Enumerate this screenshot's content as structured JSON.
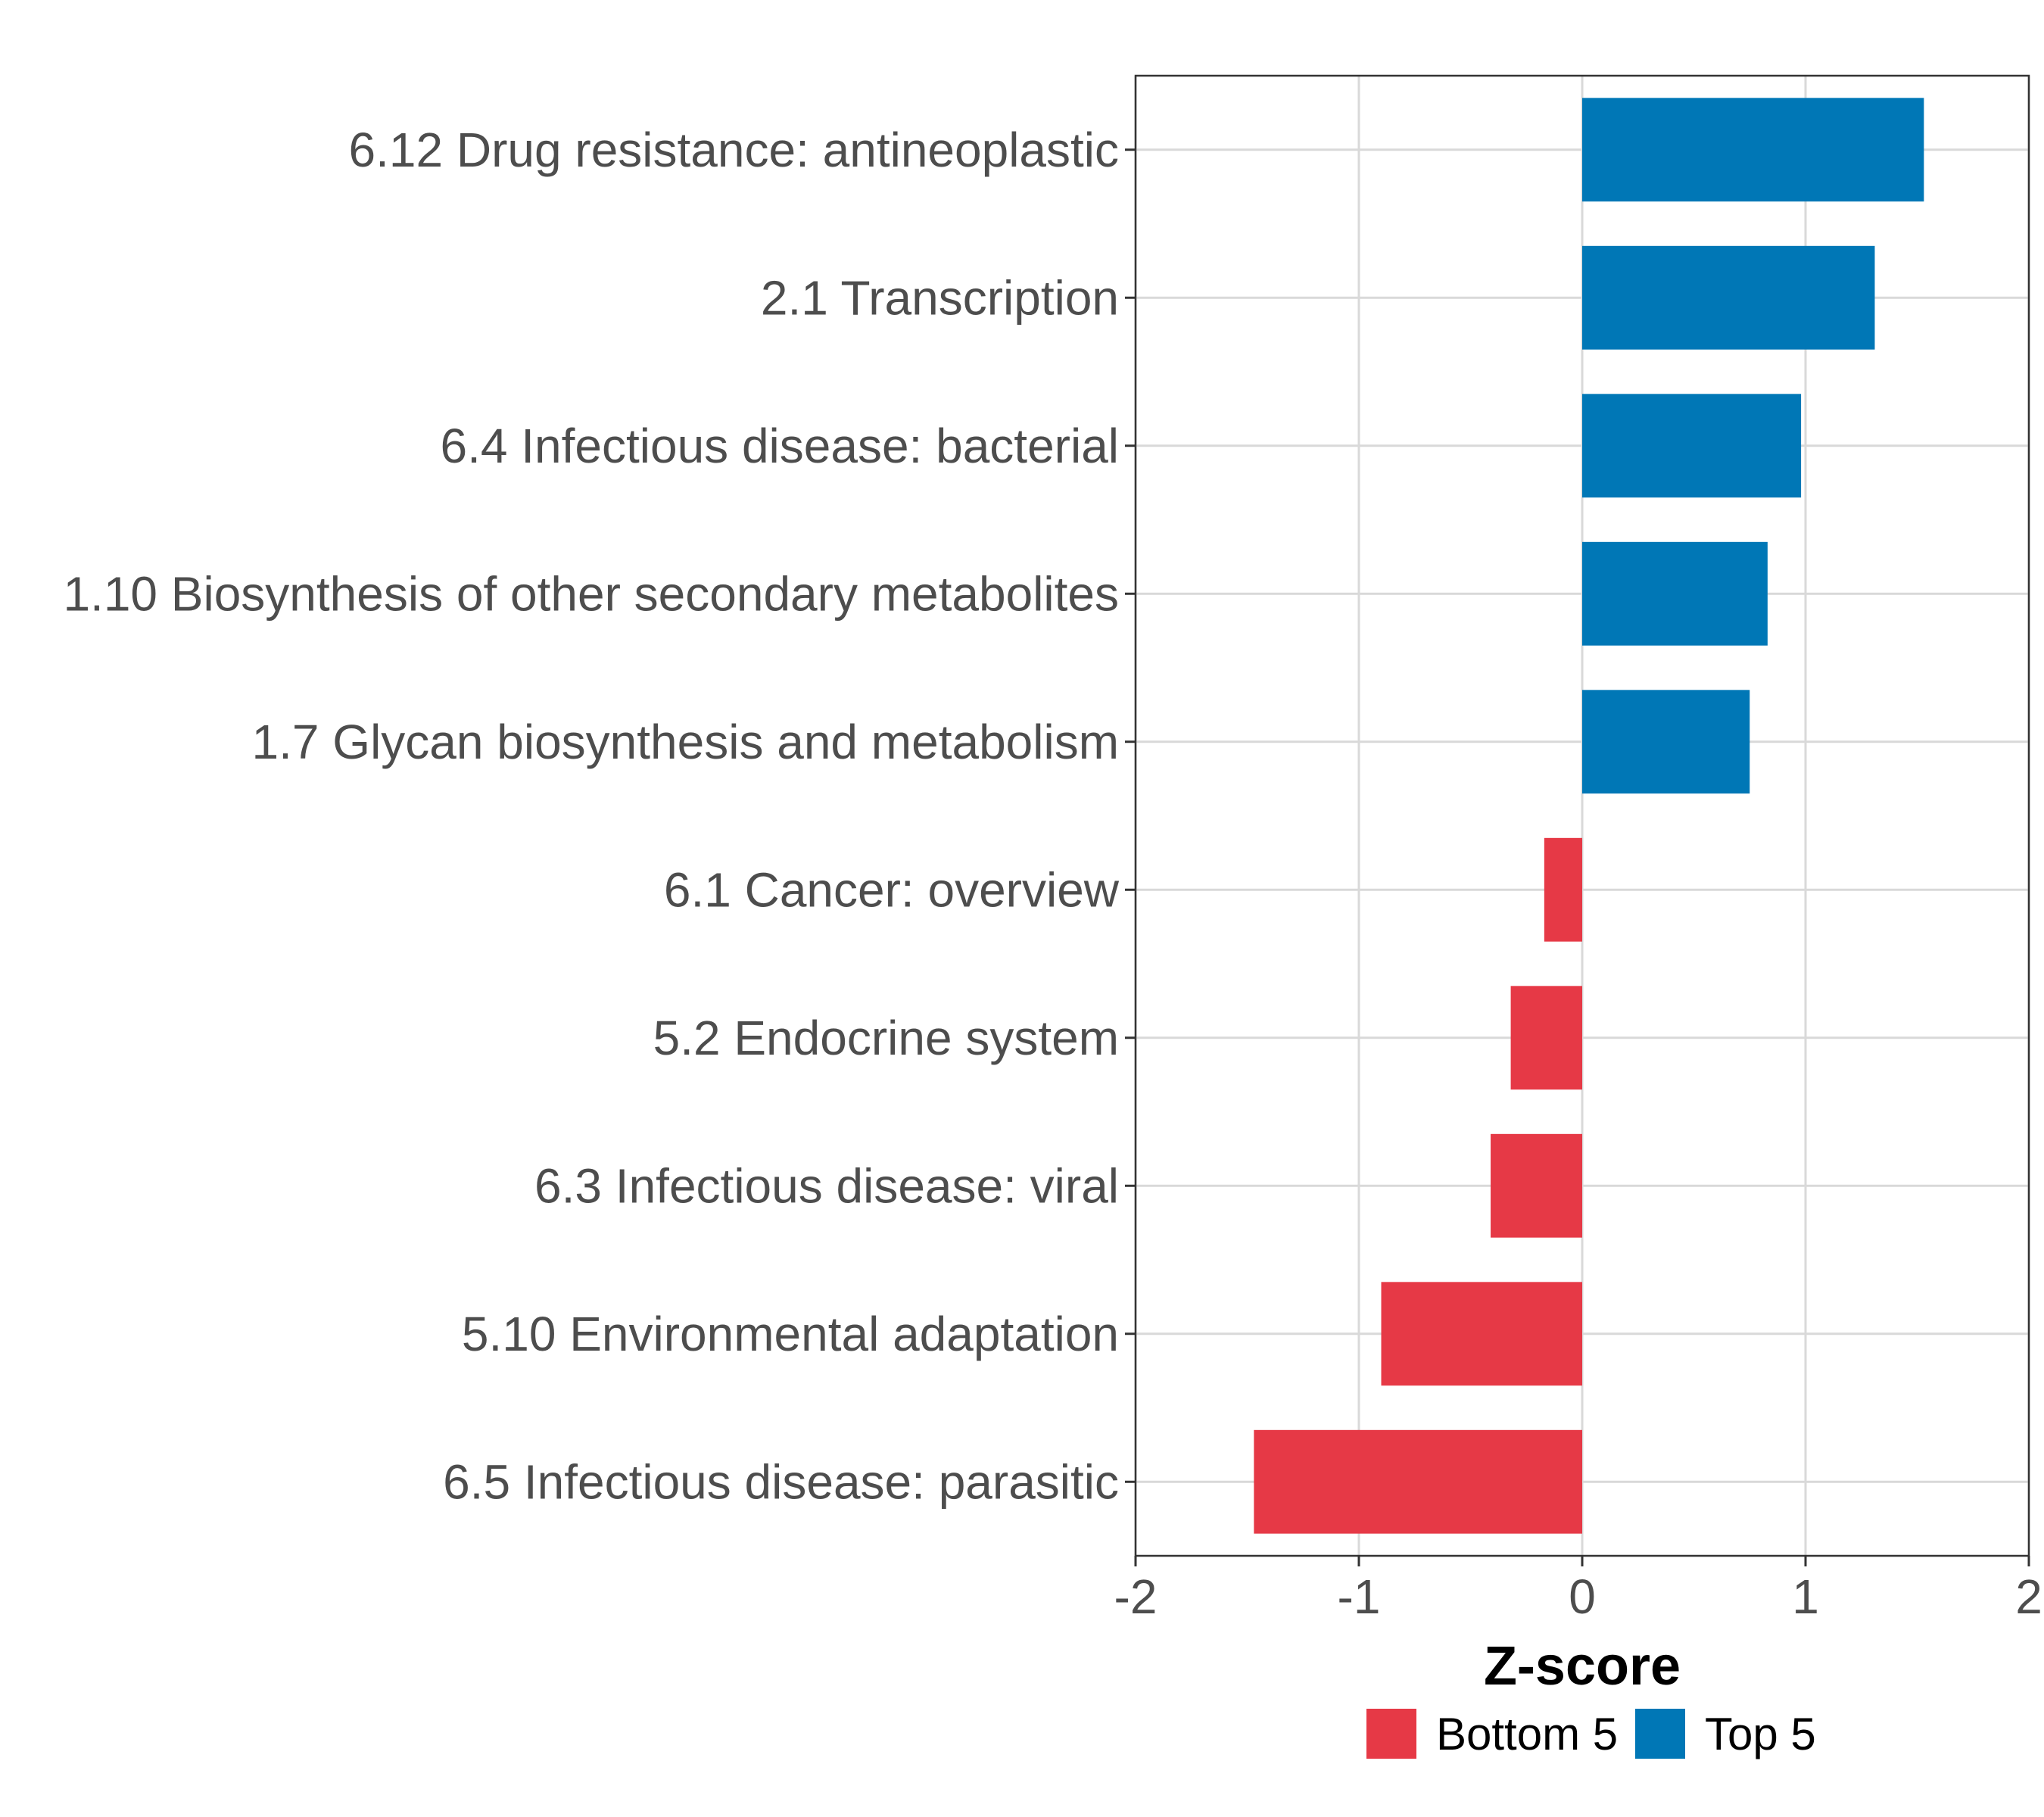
{
  "chart_data": {
    "type": "bar",
    "orientation": "horizontal",
    "categories": [
      "6.12 Drug resistance: antineoplastic",
      "2.1 Transcription",
      "6.4 Infectious disease: bacterial",
      "1.10 Biosynthesis of other secondary metabolites",
      "1.7 Glycan biosynthesis and metabolism",
      "6.1 Cancer: overview",
      "5.2 Endocrine system",
      "6.3 Infectious disease: viral",
      "5.10 Environmental adaptation",
      "6.5 Infectious disease: parasitic"
    ],
    "values": [
      1.53,
      1.31,
      0.98,
      0.83,
      0.75,
      -0.17,
      -0.32,
      -0.41,
      -0.9,
      -1.47
    ],
    "groups": [
      "Top 5",
      "Top 5",
      "Top 5",
      "Top 5",
      "Top 5",
      "Bottom 5",
      "Bottom 5",
      "Bottom 5",
      "Bottom 5",
      "Bottom 5"
    ],
    "xlabel": "Z-score",
    "ylabel": "",
    "xlim": [
      -2,
      2
    ],
    "xticks": [
      -2,
      -1,
      0,
      1,
      2
    ],
    "xtick_labels": [
      "-2",
      "-1",
      "0",
      "1",
      "2"
    ],
    "grid": true,
    "legend": {
      "position": "bottom",
      "items": [
        {
          "label": "Bottom 5",
          "color": "#E63946"
        },
        {
          "label": "Top 5",
          "color": "#0077B6"
        }
      ]
    },
    "colors": {
      "Top 5": "#0077B6",
      "Bottom 5": "#E63946"
    }
  }
}
